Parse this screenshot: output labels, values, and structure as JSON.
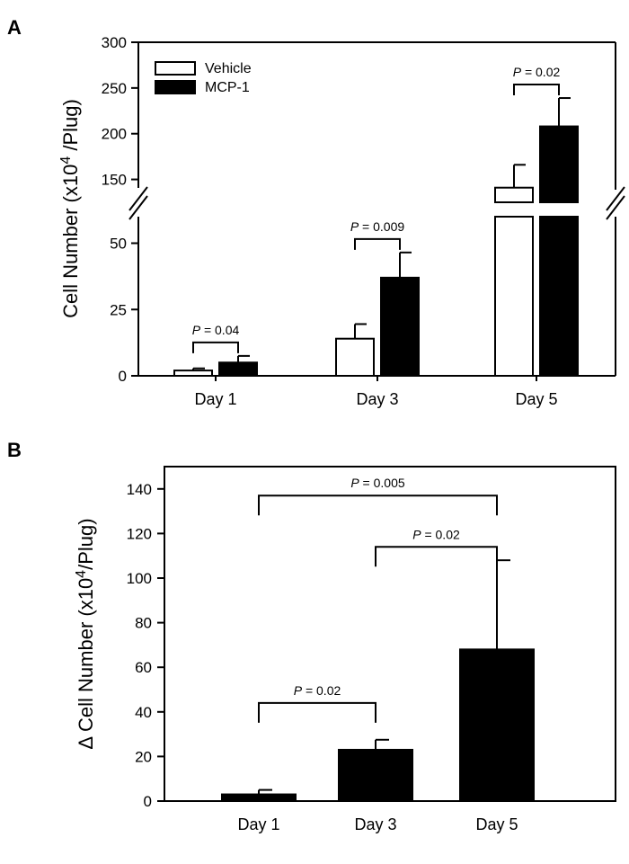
{
  "chart_data": [
    {
      "panel": "A",
      "type": "bar",
      "ylabel_main": "Cell Number (x10",
      "ylabel_sup": "4",
      "ylabel_tail": " /Plug)",
      "categories": [
        "Day 1",
        "Day 3",
        "Day 5"
      ],
      "series": [
        {
          "name": "Vehicle",
          "values": [
            2,
            14,
            141
          ],
          "errors": [
            0.8,
            5.5,
            25
          ],
          "fill": "#ffffff"
        },
        {
          "name": "MCP-1",
          "values": [
            5,
            37,
            208
          ],
          "errors": [
            2.5,
            9.5,
            31
          ],
          "fill": "#000000"
        }
      ],
      "axis_break": {
        "lower": [
          0,
          60
        ],
        "upper": [
          125,
          300
        ]
      },
      "yticks_lower": [
        "0",
        "25",
        "50"
      ],
      "yticks_upper": [
        "150",
        "200",
        "250",
        "300"
      ],
      "legend": {
        "position": "top-left",
        "entries": [
          "Vehicle",
          "MCP-1"
        ]
      },
      "annotations": [
        {
          "text": "P = 0.04",
          "category": "Day 1"
        },
        {
          "text": "P = 0.009",
          "category": "Day 3"
        },
        {
          "text": "P = 0.02",
          "category": "Day 5"
        }
      ]
    },
    {
      "panel": "B",
      "type": "bar",
      "ylabel_prefix": "Δ",
      "ylabel_main": " Cell Number (x10",
      "ylabel_sup": "4",
      "ylabel_tail": "/Plug)",
      "categories": [
        "Day 1",
        "Day 3",
        "Day 5"
      ],
      "values": [
        3,
        23,
        68
      ],
      "errors": [
        2,
        4.5,
        40
      ],
      "ylim": [
        0,
        150
      ],
      "yticks": [
        "0",
        "20",
        "40",
        "60",
        "80",
        "100",
        "120",
        "140"
      ],
      "annotations": [
        {
          "text": "P = 0.005",
          "between": [
            "Day 1",
            "Day 5"
          ]
        },
        {
          "text": "P = 0.02",
          "between": [
            "Day 3",
            "Day 5"
          ]
        },
        {
          "text": "P = 0.02",
          "between": [
            "Day 1",
            "Day 3"
          ]
        }
      ]
    }
  ]
}
